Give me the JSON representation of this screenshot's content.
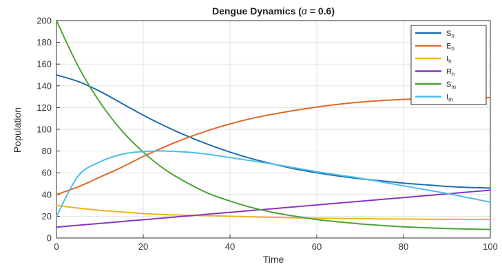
{
  "chart_data": {
    "type": "line",
    "title_prefix": "Dengue Dynamics (",
    "title_symbol": "α",
    "title_suffix": " = 0.6)",
    "xlabel": "Time",
    "ylabel": "Population",
    "xlim": [
      0,
      100
    ],
    "ylim": [
      0,
      200
    ],
    "xticks": [
      0,
      20,
      40,
      60,
      80,
      100
    ],
    "yticks": [
      0,
      20,
      40,
      60,
      80,
      100,
      120,
      140,
      160,
      180,
      200
    ],
    "grid": true,
    "legend_position": "top-right",
    "x": [
      0,
      5,
      10,
      15,
      20,
      25,
      30,
      35,
      40,
      45,
      50,
      55,
      60,
      65,
      70,
      75,
      80,
      85,
      90,
      95,
      100
    ],
    "series": [
      {
        "name": "S",
        "sub": "h",
        "color": "#1f6db0",
        "values": [
          150,
          144,
          135,
          124,
          113,
          103,
          94,
          86,
          79,
          73,
          68,
          63.5,
          60,
          57,
          54.5,
          52.5,
          50.5,
          49,
          47.5,
          46.5,
          46
        ]
      },
      {
        "name": "E",
        "sub": "h",
        "color": "#dd6a2b",
        "values": [
          40,
          47,
          56,
          65,
          75,
          84,
          92,
          99,
          105,
          110,
          114,
          117.5,
          120.5,
          123,
          125,
          126.5,
          127.5,
          128.2,
          128.7,
          129,
          129.3
        ]
      },
      {
        "name": "I",
        "sub": "h",
        "color": "#f0b224",
        "values": [
          30,
          27.5,
          25.5,
          24,
          22.5,
          21.5,
          21,
          20.5,
          20,
          19.5,
          19,
          18.5,
          18.2,
          18,
          17.8,
          17.6,
          17.4,
          17.3,
          17.2,
          17.1,
          17
        ]
      },
      {
        "name": "R",
        "sub": "h",
        "color": "#8a35c4",
        "values": [
          10,
          11.7,
          13.4,
          15.1,
          16.8,
          18.5,
          20.2,
          21.9,
          23.6,
          25.3,
          27,
          28.7,
          30.4,
          32.1,
          33.8,
          35.5,
          37.2,
          38.9,
          40.6,
          42.3,
          44
        ]
      },
      {
        "name": "S",
        "sub": "m",
        "color": "#4aa337",
        "values": [
          200,
          158,
          125,
          99,
          79,
          63,
          51,
          41,
          34,
          28,
          23.5,
          20,
          17,
          14.8,
          13,
          11.5,
          10.3,
          9.4,
          8.7,
          8.2,
          7.8
        ]
      },
      {
        "name": "I",
        "sub": "m",
        "color": "#4dbde8",
        "values": [
          20,
          57,
          70,
          77,
          79.5,
          80,
          79,
          77,
          74,
          71,
          68,
          64.5,
          61,
          58,
          55,
          51.5,
          48,
          44.5,
          41,
          37,
          33
        ]
      }
    ]
  }
}
